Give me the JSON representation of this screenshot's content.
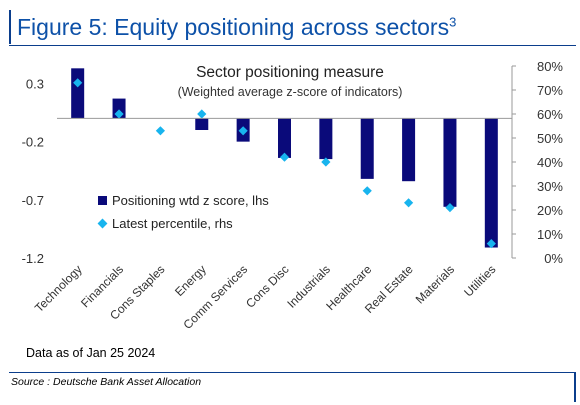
{
  "figure": {
    "title": "Figure 5: Equity positioning across sectors",
    "title_sup": "3"
  },
  "note": "Data as of Jan 25 2024",
  "source": "Source : Deutsche Bank Asset Allocation",
  "colors": {
    "frame": "#0b3e8c",
    "title_text": "#0d51a8",
    "bar": "#0a0a7a",
    "marker": "#18b4ee"
  },
  "chart_data": {
    "type": "bar",
    "title": "Sector positioning measure",
    "subtitle": "(Weighted average z-score of indicators)",
    "categories": [
      "Technology",
      "Financials",
      "Cons Staples",
      "Energy",
      "Comm Services",
      "Cons Disc",
      "Industrials",
      "Healthcare",
      "Real Estate",
      "Materials",
      "Utilities"
    ],
    "y_left": {
      "ylim": [
        -1.2,
        0.45
      ],
      "ticks": [
        0.3,
        -0.2,
        -0.7,
        -1.2
      ],
      "tick_labels": [
        "0.3",
        "-0.2",
        "-0.7",
        "-1.2"
      ]
    },
    "y_right": {
      "ylim": [
        0,
        80
      ],
      "ticks": [
        0,
        10,
        20,
        30,
        40,
        50,
        60,
        70,
        80
      ],
      "tick_labels": [
        "0%",
        "10%",
        "20%",
        "30%",
        "40%",
        "50%",
        "60%",
        "70%",
        "80%"
      ]
    },
    "series": [
      {
        "name": "Positioning wtd z score, lhs",
        "type": "bar",
        "axis": "left",
        "values": [
          0.43,
          0.17,
          0.0,
          -0.1,
          -0.2,
          -0.34,
          -0.35,
          -0.52,
          -0.54,
          -0.76,
          -1.11
        ]
      },
      {
        "name": "Latest percentile, rhs",
        "type": "scatter",
        "axis": "right",
        "values": [
          73,
          60,
          53,
          60,
          53,
          42,
          40,
          28,
          23,
          21,
          6
        ]
      }
    ],
    "legend_position": "bottom-left, inside plot",
    "grid": false
  }
}
